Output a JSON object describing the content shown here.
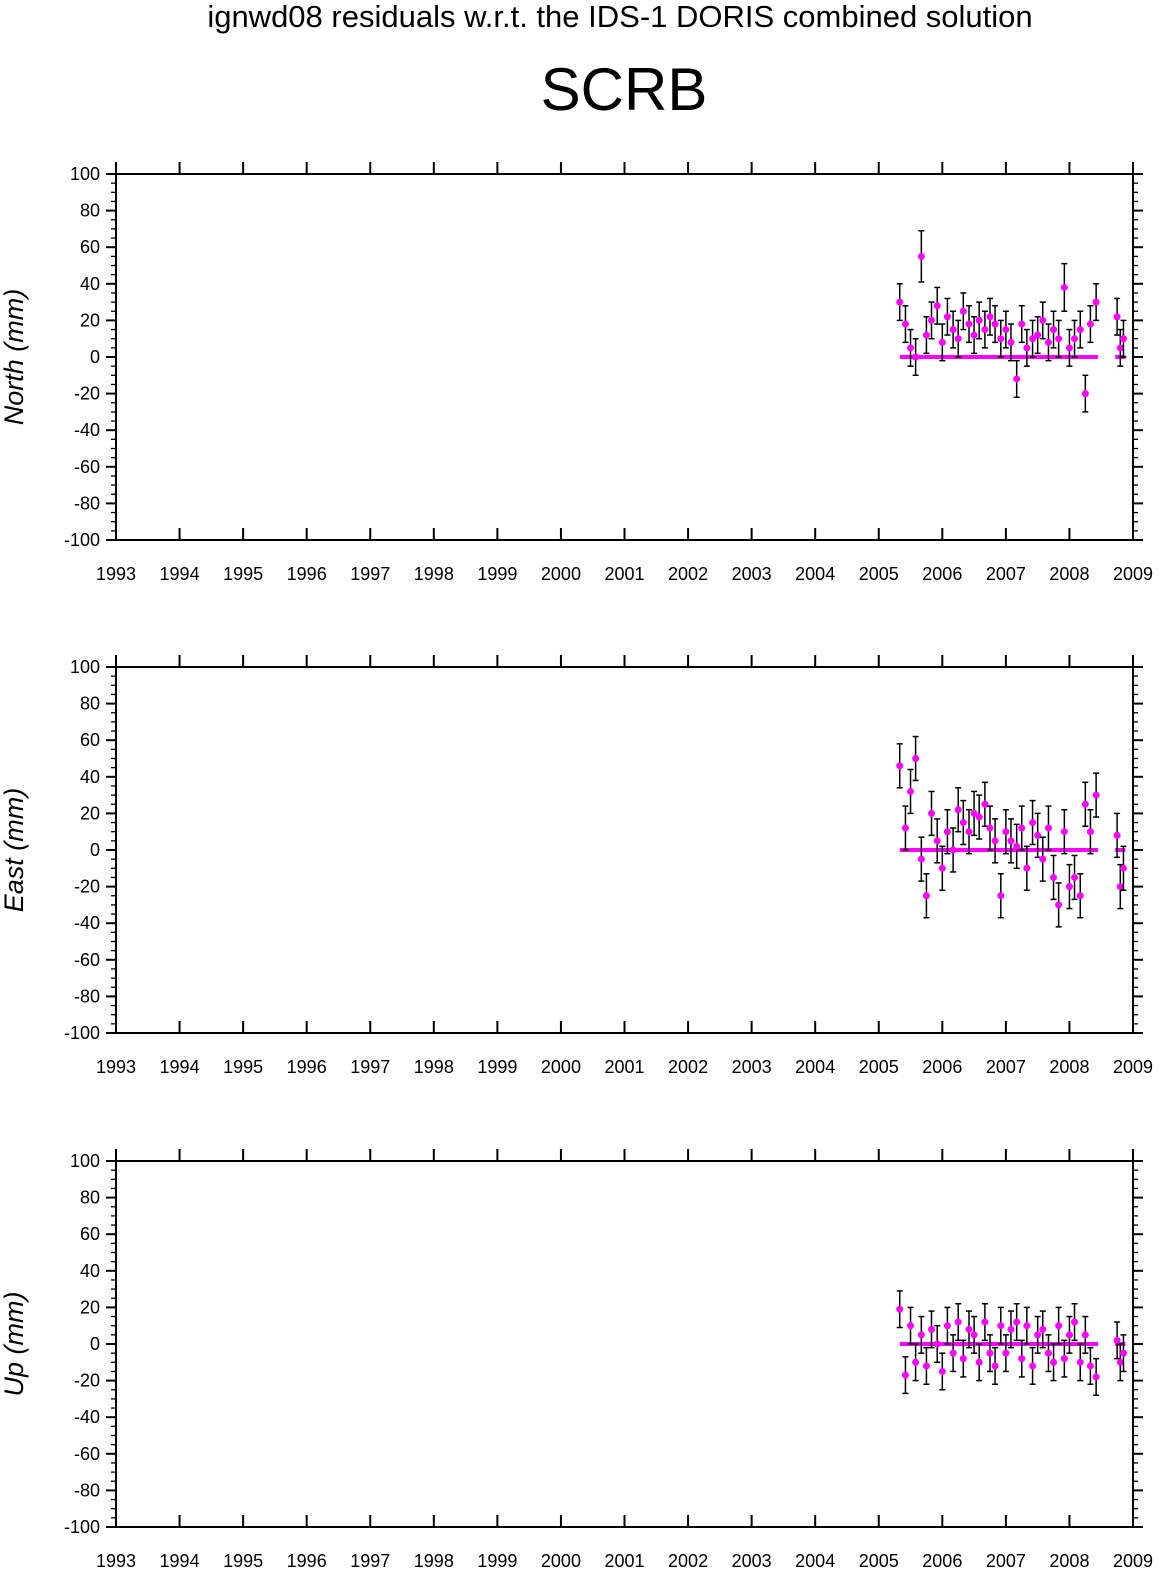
{
  "figure": {
    "title": "ignwd08 residuals w.r.t. the IDS-1 DORIS combined solution",
    "subtitle": "SCRB"
  },
  "colors": {
    "axes": "#000000",
    "errorbar": "#000000",
    "points": "#ff00ff",
    "zero_line": "#ff00ff"
  },
  "chart_data": [
    {
      "type": "scatter",
      "ylabel": "North (mm)",
      "xlim": [
        1993,
        2009
      ],
      "ylim": [
        -100,
        100
      ],
      "xticks": [
        "1993",
        "1994",
        "1995",
        "1996",
        "1997",
        "1998",
        "1999",
        "2000",
        "2001",
        "2002",
        "2003",
        "2004",
        "2005",
        "2006",
        "2007",
        "2008",
        "2009"
      ],
      "yticks": [
        "100",
        "80",
        "60",
        "40",
        "20",
        "0",
        "-20",
        "-40",
        "-60",
        "-80",
        "-100"
      ],
      "grid": false,
      "series": [
        {
          "x": [
            2005.33,
            2005.42,
            2005.5,
            2005.58,
            2005.67,
            2005.75,
            2005.83,
            2005.92,
            2006.0,
            2006.08,
            2006.17,
            2006.25,
            2006.33,
            2006.42,
            2006.5,
            2006.58,
            2006.67,
            2006.75,
            2006.83,
            2006.92,
            2007.0,
            2007.08,
            2007.17,
            2007.25,
            2007.33,
            2007.42,
            2007.5,
            2007.58,
            2007.67,
            2007.75,
            2007.83,
            2007.92,
            2008.0,
            2008.08,
            2008.17,
            2008.25,
            2008.33,
            2008.42,
            2008.75,
            2008.8,
            2008.85
          ],
          "y": [
            30,
            18,
            5,
            0,
            55,
            12,
            20,
            28,
            8,
            22,
            15,
            10,
            25,
            18,
            12,
            20,
            15,
            22,
            18,
            10,
            15,
            8,
            -12,
            18,
            5,
            10,
            12,
            20,
            8,
            15,
            10,
            38,
            5,
            10,
            15,
            -20,
            18,
            30,
            22,
            5,
            10
          ],
          "err": [
            10,
            10,
            10,
            10,
            14,
            10,
            10,
            10,
            10,
            10,
            10,
            10,
            10,
            10,
            10,
            10,
            10,
            10,
            10,
            10,
            10,
            10,
            10,
            10,
            10,
            10,
            10,
            10,
            10,
            10,
            10,
            13,
            10,
            10,
            10,
            10,
            10,
            10,
            10,
            10,
            10
          ]
        }
      ]
    },
    {
      "type": "scatter",
      "ylabel": "East (mm)",
      "xlim": [
        1993,
        2009
      ],
      "ylim": [
        -100,
        100
      ],
      "xticks": [
        "1993",
        "1994",
        "1995",
        "1996",
        "1997",
        "1998",
        "1999",
        "2000",
        "2001",
        "2002",
        "2003",
        "2004",
        "2005",
        "2006",
        "2007",
        "2008",
        "2009"
      ],
      "yticks": [
        "100",
        "80",
        "60",
        "40",
        "20",
        "0",
        "-20",
        "-40",
        "-60",
        "-80",
        "-100"
      ],
      "grid": false,
      "series": [
        {
          "x": [
            2005.33,
            2005.42,
            2005.5,
            2005.58,
            2005.67,
            2005.75,
            2005.83,
            2005.92,
            2006.0,
            2006.08,
            2006.17,
            2006.25,
            2006.33,
            2006.42,
            2006.5,
            2006.58,
            2006.67,
            2006.75,
            2006.83,
            2006.92,
            2007.0,
            2007.08,
            2007.17,
            2007.25,
            2007.33,
            2007.42,
            2007.5,
            2007.58,
            2007.67,
            2007.75,
            2007.83,
            2007.92,
            2008.0,
            2008.08,
            2008.17,
            2008.25,
            2008.33,
            2008.42,
            2008.75,
            2008.8,
            2008.85
          ],
          "y": [
            46,
            12,
            32,
            50,
            -5,
            -25,
            20,
            5,
            -10,
            10,
            0,
            22,
            15,
            10,
            20,
            18,
            25,
            12,
            5,
            -25,
            10,
            5,
            2,
            12,
            -10,
            15,
            8,
            -5,
            12,
            -15,
            -30,
            10,
            -20,
            -15,
            -25,
            25,
            10,
            30,
            8,
            -20,
            -10
          ],
          "err": [
            12,
            12,
            12,
            12,
            12,
            12,
            12,
            12,
            12,
            12,
            12,
            12,
            12,
            12,
            12,
            12,
            12,
            12,
            12,
            12,
            12,
            12,
            12,
            12,
            12,
            12,
            12,
            12,
            12,
            12,
            12,
            12,
            12,
            12,
            12,
            12,
            12,
            12,
            12,
            12,
            12
          ]
        }
      ]
    },
    {
      "type": "scatter",
      "ylabel": "Up (mm)",
      "xlim": [
        1993,
        2009
      ],
      "ylim": [
        -100,
        100
      ],
      "xticks": [
        "1993",
        "1994",
        "1995",
        "1996",
        "1997",
        "1998",
        "1999",
        "2000",
        "2001",
        "2002",
        "2003",
        "2004",
        "2005",
        "2006",
        "2007",
        "2008",
        "2009"
      ],
      "yticks": [
        "100",
        "80",
        "60",
        "40",
        "20",
        "0",
        "-20",
        "-40",
        "-60",
        "-80",
        "-100"
      ],
      "grid": false,
      "series": [
        {
          "x": [
            2005.33,
            2005.42,
            2005.5,
            2005.58,
            2005.67,
            2005.75,
            2005.83,
            2005.92,
            2006.0,
            2006.08,
            2006.17,
            2006.25,
            2006.33,
            2006.42,
            2006.5,
            2006.58,
            2006.67,
            2006.75,
            2006.83,
            2006.92,
            2007.0,
            2007.08,
            2007.17,
            2007.25,
            2007.33,
            2007.42,
            2007.5,
            2007.58,
            2007.67,
            2007.75,
            2007.83,
            2007.92,
            2008.0,
            2008.08,
            2008.17,
            2008.25,
            2008.33,
            2008.42,
            2008.75,
            2008.8,
            2008.85
          ],
          "y": [
            19,
            -17,
            10,
            -10,
            5,
            -12,
            8,
            0,
            -15,
            10,
            -5,
            12,
            -8,
            8,
            5,
            -10,
            12,
            -5,
            -12,
            10,
            -5,
            8,
            12,
            -8,
            10,
            -12,
            5,
            8,
            -5,
            -10,
            10,
            -8,
            5,
            12,
            -10,
            5,
            -12,
            -18,
            2,
            -10,
            -5
          ],
          "err": [
            10,
            10,
            10,
            10,
            10,
            10,
            10,
            10,
            10,
            10,
            10,
            10,
            10,
            10,
            10,
            10,
            10,
            10,
            10,
            10,
            10,
            10,
            10,
            10,
            10,
            10,
            10,
            10,
            10,
            10,
            10,
            10,
            10,
            10,
            10,
            10,
            10,
            10,
            10,
            10,
            10
          ]
        }
      ]
    }
  ]
}
